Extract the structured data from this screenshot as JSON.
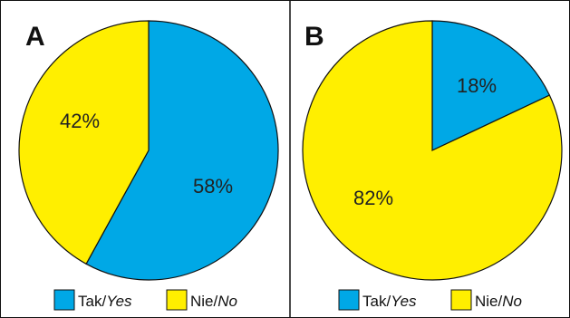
{
  "chart_data": [
    {
      "type": "pie",
      "panel": "A",
      "categories": [
        "Tak/Yes",
        "Nie/No"
      ],
      "values": [
        58,
        42
      ],
      "value_labels": [
        "58%",
        "42%"
      ],
      "colors": [
        "#00a8e6",
        "#ffef00"
      ],
      "legend": [
        {
          "pl": "Tak",
          "en": "Yes",
          "color": "#00a8e6"
        },
        {
          "pl": "Nie",
          "en": "No",
          "color": "#ffef00"
        }
      ],
      "legend_placement": "bottom",
      "title": ""
    },
    {
      "type": "pie",
      "panel": "B",
      "categories": [
        "Tak/Yes",
        "Nie/No"
      ],
      "values": [
        18,
        82
      ],
      "value_labels": [
        "18%",
        "82%"
      ],
      "colors": [
        "#00a8e6",
        "#ffef00"
      ],
      "legend": [
        {
          "pl": "Tak",
          "en": "Yes",
          "color": "#00a8e6"
        },
        {
          "pl": "Nie",
          "en": "No",
          "color": "#ffef00"
        }
      ],
      "legend_placement": "bottom",
      "title": ""
    }
  ],
  "colors": {
    "yes": "#00a8e6",
    "no": "#ffef00",
    "border": "#111111"
  }
}
